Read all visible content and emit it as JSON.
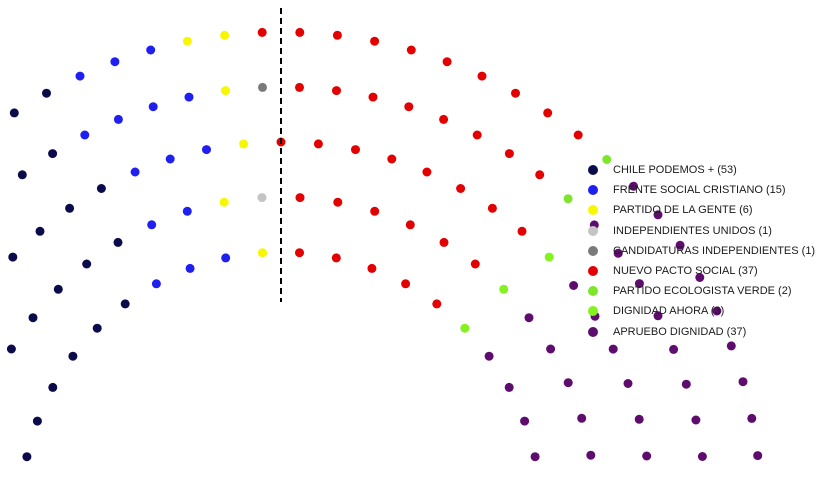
{
  "chart_data": {
    "type": "parliament",
    "divider": "dashed vertical line at center",
    "legend_position": "right",
    "parties": [
      {
        "name": "CHILE PODEMOS + (53)",
        "seats": 53,
        "color": "#0b0b4b"
      },
      {
        "name": "FRENTE SOCIAL CRISTIANO (15)",
        "seats": 15,
        "color": "#1f1ff0"
      },
      {
        "name": "PARTIDO DE LA GENTE (6)",
        "seats": 6,
        "color": "#f7f700"
      },
      {
        "name": "INDEPENDIENTES UNIDOS (1)",
        "seats": 1,
        "color": "#c4c4c4"
      },
      {
        "name": "CANDIDATURAS INDEPENDIENTES (1)",
        "seats": 1,
        "color": "#7a7a7a"
      },
      {
        "name": "NUEVO PACTO SOCIAL (37)",
        "seats": 37,
        "color": "#e30000"
      },
      {
        "name": "PARTIDO ECOLOGISTA VERDE (2)",
        "seats": 2,
        "color": "#7ee62a"
      },
      {
        "name": "DIGNIDAD AHORA (3)",
        "seats": 3,
        "color": "#83f21e"
      },
      {
        "name": "APRUEBO DIGNIDAD (37)",
        "seats": 37,
        "color": "#5e0d6e"
      }
    ]
  }
}
